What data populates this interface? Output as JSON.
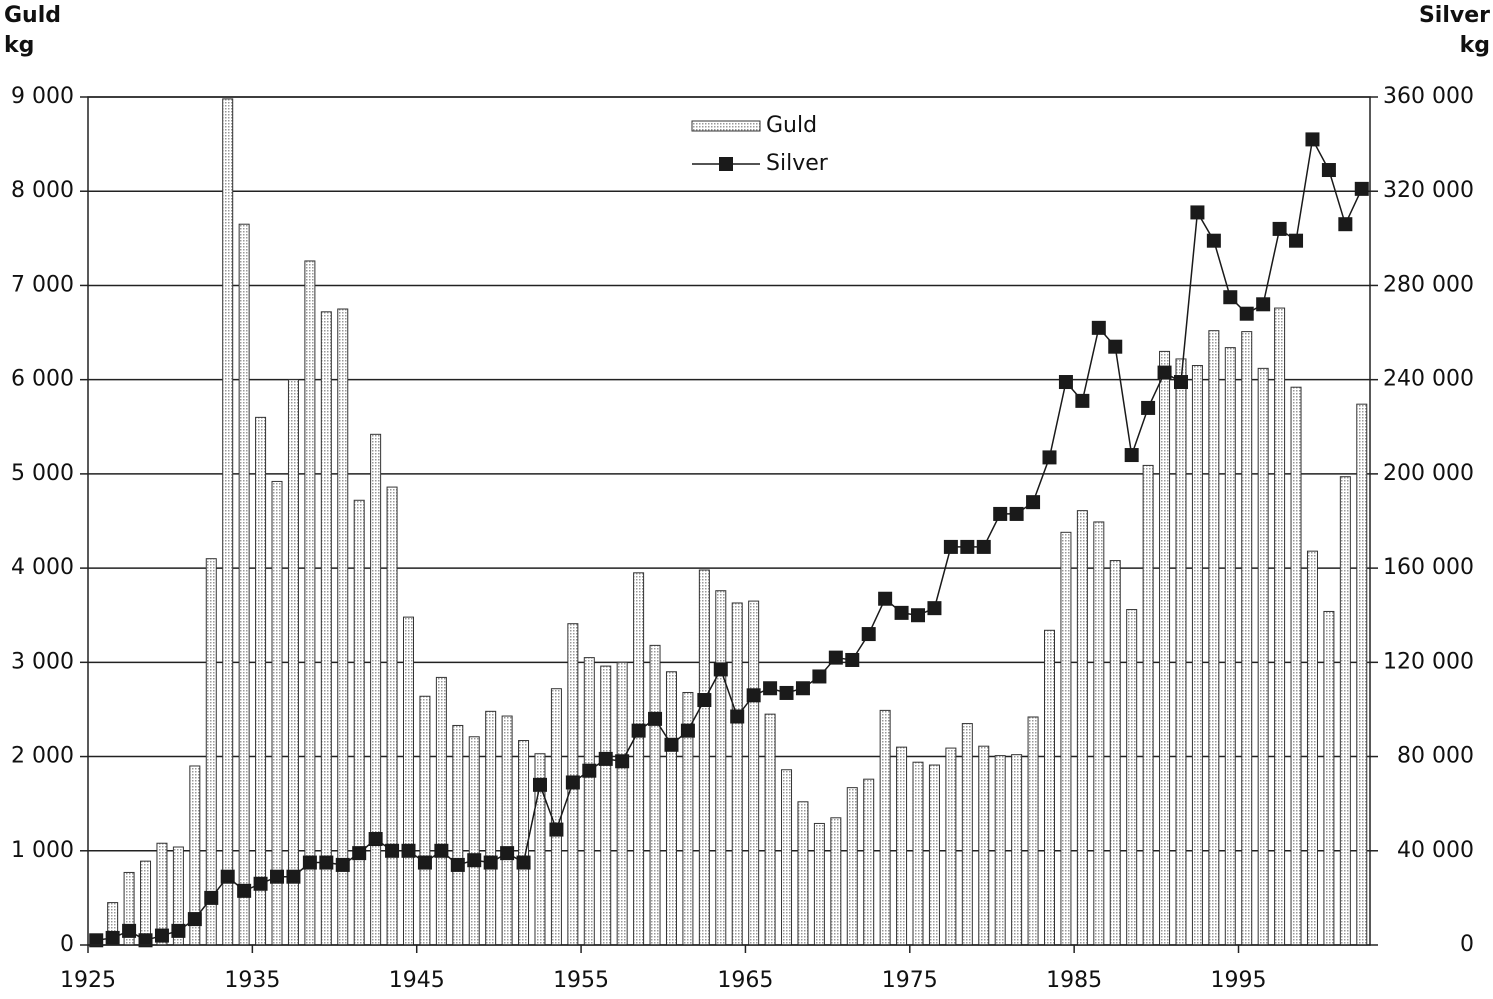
{
  "chart_data": {
    "type": "bar_line",
    "ylabel": [
      "Guld",
      "kg"
    ],
    "y2label": [
      "Silver",
      "kg"
    ],
    "x": [
      1925,
      1926,
      1927,
      1928,
      1929,
      1930,
      1931,
      1932,
      1933,
      1934,
      1935,
      1936,
      1937,
      1938,
      1939,
      1940,
      1941,
      1942,
      1943,
      1944,
      1945,
      1946,
      1947,
      1948,
      1949,
      1950,
      1951,
      1952,
      1953,
      1954,
      1955,
      1956,
      1957,
      1958,
      1959,
      1960,
      1961,
      1962,
      1963,
      1964,
      1965,
      1966,
      1967,
      1968,
      1969,
      1970,
      1971,
      1972,
      1973,
      1974,
      1975,
      1976,
      1977,
      1978,
      1979,
      1980,
      1981,
      1982,
      1983,
      1984,
      1985,
      1986,
      1987,
      1988,
      1989,
      1990,
      1991,
      1992,
      1993,
      1994,
      1995,
      1996,
      1997,
      1998,
      1999,
      2000,
      2001,
      2002
    ],
    "series": [
      {
        "name": "Guld",
        "type": "bar",
        "color": "#dcdcdc",
        "values": [
          50,
          450,
          770,
          890,
          1080,
          1040,
          1900,
          4100,
          8980,
          7650,
          5600,
          4920,
          6000,
          7260,
          6720,
          6750,
          4720,
          5420,
          4860,
          3480,
          2640,
          2840,
          2330,
          2210,
          2480,
          2430,
          2170,
          2030,
          2720,
          3410,
          3050,
          2960,
          3000,
          3950,
          3180,
          2900,
          2680,
          3980,
          3760,
          3630,
          3650,
          2450,
          1860,
          1520,
          1290,
          1350,
          1670,
          1760,
          2490,
          2100,
          1940,
          1910,
          2090,
          2350,
          2110,
          2010,
          2020,
          2420,
          3340,
          4380,
          4610,
          4490,
          4080,
          3560,
          5090,
          6300,
          6220,
          6150,
          6520,
          6340,
          6510,
          6120,
          6760,
          5920,
          4180,
          3540,
          4970,
          5740
        ]
      },
      {
        "name": "Silver",
        "type": "line",
        "axis": "y2",
        "color": "#1a1a1a",
        "values": [
          2000,
          3000,
          6000,
          2000,
          4000,
          6000,
          11000,
          20000,
          29000,
          23000,
          26000,
          29000,
          29000,
          35000,
          35000,
          34000,
          39000,
          45000,
          40000,
          40000,
          35000,
          40000,
          34000,
          36000,
          35000,
          39000,
          35000,
          68000,
          49000,
          69000,
          74000,
          79000,
          78000,
          91000,
          96000,
          85000,
          91000,
          104000,
          117000,
          97000,
          106000,
          109000,
          107000,
          109000,
          114000,
          122000,
          121000,
          132000,
          147000,
          141000,
          140000,
          143000,
          169000,
          169000,
          169000,
          183000,
          183000,
          188000,
          207000,
          239000,
          231000,
          262000,
          254000,
          208000,
          228000,
          243000,
          239000,
          311000,
          299000,
          275000,
          268000,
          272000,
          304000,
          299000,
          342000,
          329000,
          306000,
          321000
        ]
      }
    ],
    "xlim": [
      1925,
      2003
    ],
    "xticks": [
      1925,
      1935,
      1945,
      1955,
      1965,
      1975,
      1985,
      1995
    ],
    "ylim": [
      0,
      9000
    ],
    "yticks": [
      0,
      {
        "value": 1000,
        "label": "1 000"
      },
      {
        "value": 2000,
        "label": "2 000"
      },
      {
        "value": 3000,
        "label": "3 000"
      },
      {
        "value": 4000,
        "label": "4 000"
      },
      {
        "value": 5000,
        "label": "5 000"
      },
      {
        "value": 6000,
        "label": "6 000"
      },
      {
        "value": 7000,
        "label": "7 000"
      },
      {
        "value": 8000,
        "label": "8 000"
      },
      {
        "value": 9000,
        "label": "9 000"
      }
    ],
    "y2lim": [
      0,
      360000
    ],
    "y2ticks": [
      0,
      {
        "value": 40000,
        "label": "40 000"
      },
      {
        "value": 80000,
        "label": "80 000"
      },
      {
        "value": 120000,
        "label": "120 000"
      },
      {
        "value": 160000,
        "label": "160 000"
      },
      {
        "value": 200000,
        "label": "200 000"
      },
      {
        "value": 240000,
        "label": "240 000"
      },
      {
        "value": 280000,
        "label": "280 000"
      },
      {
        "value": 320000,
        "label": "320 000"
      },
      {
        "value": 360000,
        "label": "360 000"
      }
    ],
    "grid": true,
    "legend": "top"
  }
}
